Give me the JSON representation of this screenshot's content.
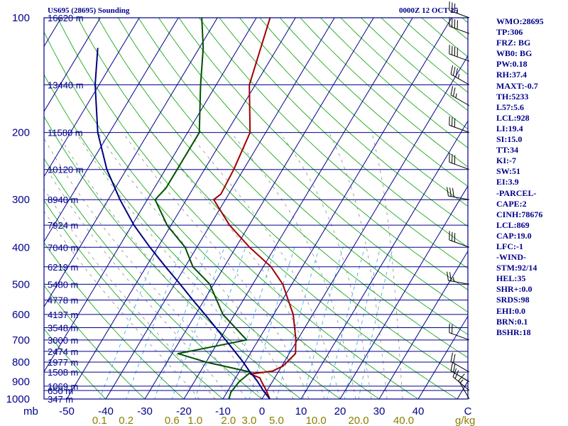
{
  "chart_data": {
    "type": "skew-t log-p sounding",
    "title": "US695 (28695) Sounding",
    "valid_time": "0000Z 12 OCT 25",
    "pressure_axis_label": "mb",
    "pressure_ticks": [
      100,
      200,
      300,
      400,
      500,
      600,
      700,
      800,
      900,
      1000
    ],
    "ylim": [
      1000,
      100
    ],
    "temperature_axis_unit": "C",
    "temperature_ticks": [
      -50,
      -40,
      -30,
      -20,
      -10,
      0,
      10,
      20,
      30,
      40
    ],
    "mixing_ratio_unit": "g/kg",
    "mixing_ratio_ticks": [
      "0.1",
      "0.2",
      "0.6",
      "1.0",
      "2.0",
      "3.0",
      "5.0",
      "10.0",
      "20.0",
      "40.0"
    ],
    "height_labels": [
      {
        "p": 1000,
        "label": "347 m"
      },
      {
        "p": 950,
        "label": "650 m"
      },
      {
        "p": 925,
        "label": "1069 m"
      },
      {
        "p": 850,
        "label": "1508 m"
      },
      {
        "p": 800,
        "label": "1977 m"
      },
      {
        "p": 750,
        "label": "2474 m"
      },
      {
        "p": 700,
        "label": "3000 m"
      },
      {
        "p": 650,
        "label": "3548 m"
      },
      {
        "p": 600,
        "label": "4137 m"
      },
      {
        "p": 550,
        "label": "4778 m"
      },
      {
        "p": 500,
        "label": "5480 m"
      },
      {
        "p": 450,
        "label": "6219 m"
      },
      {
        "p": 400,
        "label": "7040 m"
      },
      {
        "p": 350,
        "label": "7924 m"
      },
      {
        "p": 300,
        "label": "8940 m"
      },
      {
        "p": 250,
        "label": "10120 m"
      },
      {
        "p": 200,
        "label": "11580 m"
      },
      {
        "p": 150,
        "label": "13440 m"
      },
      {
        "p": 100,
        "label": "16620 m"
      }
    ],
    "series": [
      {
        "name": "temperature",
        "color": "#a00000",
        "points": [
          [
            1000,
            2.0
          ],
          [
            950,
            -0.2
          ],
          [
            900,
            -2.8
          ],
          [
            880,
            -3.8
          ],
          [
            860,
            -6.8
          ],
          [
            845,
            -1.6
          ],
          [
            820,
            0.3
          ],
          [
            760,
            1.6
          ],
          [
            700,
            -0.4
          ],
          [
            600,
            -5.0
          ],
          [
            550,
            -8.5
          ],
          [
            500,
            -12.3
          ],
          [
            450,
            -18.0
          ],
          [
            400,
            -26.5
          ],
          [
            350,
            -35.0
          ],
          [
            300,
            -43.0
          ],
          [
            290,
            -42.0
          ],
          [
            250,
            -42.5
          ],
          [
            200,
            -44.0
          ],
          [
            150,
            -51.5
          ],
          [
            100,
            -56.5
          ]
        ]
      },
      {
        "name": "dew point",
        "color": "#005000",
        "points": [
          [
            1000,
            -8.5
          ],
          [
            960,
            -9.0
          ],
          [
            900,
            -8.5
          ],
          [
            850,
            -7.0
          ],
          [
            800,
            -20.0
          ],
          [
            760,
            -28.5
          ],
          [
            700,
            -13.0
          ],
          [
            600,
            -23.0
          ],
          [
            500,
            -31.0
          ],
          [
            450,
            -38.0
          ],
          [
            400,
            -43.0
          ],
          [
            350,
            -51.0
          ],
          [
            300,
            -58.0
          ],
          [
            280,
            -57.0
          ],
          [
            250,
            -57.0
          ],
          [
            200,
            -57.0
          ],
          [
            150,
            -64.0
          ],
          [
            120,
            -69.0
          ],
          [
            100,
            -74.0
          ]
        ]
      },
      {
        "name": "parcel",
        "color": "#000080",
        "points": [
          [
            1000,
            2.0
          ],
          [
            950,
            -1.0
          ],
          [
            900,
            -3.8
          ],
          [
            869,
            -5.8
          ],
          [
            850,
            -7.2
          ],
          [
            800,
            -10.5
          ],
          [
            750,
            -14.3
          ],
          [
            700,
            -18.4
          ],
          [
            650,
            -22.8
          ],
          [
            600,
            -27.6
          ],
          [
            550,
            -32.9
          ],
          [
            500,
            -38.6
          ],
          [
            450,
            -45.0
          ],
          [
            400,
            -52.0
          ],
          [
            350,
            -59.5
          ],
          [
            300,
            -67.0
          ],
          [
            250,
            -75.0
          ],
          [
            200,
            -83.0
          ],
          [
            150,
            -91.0
          ],
          [
            120,
            -96.0
          ]
        ]
      }
    ],
    "wind_barbs": [
      {
        "p": 1000,
        "dir": 330,
        "spd": 15
      },
      {
        "p": 950,
        "dir": 310,
        "spd": 20
      },
      {
        "p": 900,
        "dir": 300,
        "spd": 20
      },
      {
        "p": 850,
        "dir": 300,
        "spd": 20
      },
      {
        "p": 700,
        "dir": 290,
        "spd": 20
      },
      {
        "p": 500,
        "dir": 280,
        "spd": 25
      },
      {
        "p": 400,
        "dir": 290,
        "spd": 30
      },
      {
        "p": 300,
        "dir": 280,
        "spd": 30
      },
      {
        "p": 250,
        "dir": 290,
        "spd": 30
      },
      {
        "p": 200,
        "dir": 290,
        "spd": 30
      },
      {
        "p": 170,
        "dir": 300,
        "spd": 25
      },
      {
        "p": 150,
        "dir": 300,
        "spd": 35
      },
      {
        "p": 130,
        "dir": 290,
        "spd": 40
      },
      {
        "p": 110,
        "dir": 290,
        "spd": 40
      },
      {
        "p": 100,
        "dir": 290,
        "spd": 35
      }
    ]
  },
  "stats": [
    "WMO:28695",
    "TP:306",
    "FRZ: BG",
    "WB0: BG",
    "PW:0.18",
    "RH:37.4",
    "MAXT:-0.7",
    "TH:5233",
    "L57:5.6",
    "LCL:928",
    "LI:19.4",
    "SI:15.0",
    "TT:34",
    "KI:-7",
    "SW:51",
    "EI:3.9",
    "-PARCEL-",
    "CAPE:2",
    "CINH:78676",
    "LCL:869",
    "CAP:19.0",
    "LFC:-1",
    "-WIND-",
    "STM:92/14",
    "HEL:35",
    "SHR+:0.0",
    "SRDS:98",
    "EHI:0.0",
    "BRN:0.1",
    "BSHR:18"
  ],
  "colors": {
    "border": "#00008b",
    "isobar": "#00008b",
    "isotherm": "#00008b",
    "dry_adiabat": "#00a000",
    "moist_adiabat": "#8c8c8c",
    "mixing_ratio": "#2ea8d8",
    "tick_label": "#00008b",
    "mixing_label": "#8a8000",
    "height_label": "#00008b",
    "barb": "#000000"
  }
}
